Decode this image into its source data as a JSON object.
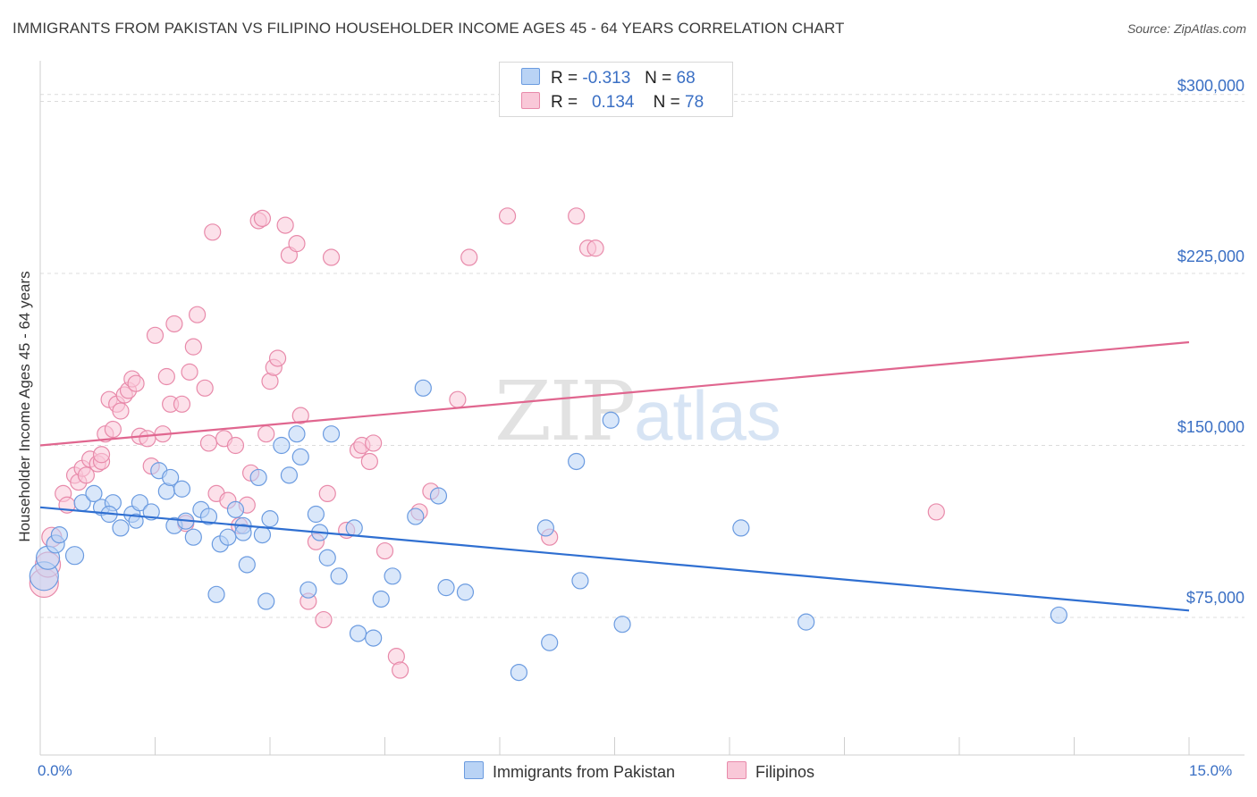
{
  "title": "IMMIGRANTS FROM PAKISTAN VS FILIPINO HOUSEHOLDER INCOME AGES 45 - 64 YEARS CORRELATION CHART",
  "source": "Source: ZipAtlas.com",
  "watermark": {
    "zip": "ZIP",
    "atlas": "atlas"
  },
  "legend": {
    "rows": [
      {
        "r_label": "R =",
        "r_value": "-0.313",
        "n_label": "N =",
        "n_value": "68"
      },
      {
        "r_label": "R =",
        "r_value": "0.134",
        "n_label": "N =",
        "n_value": "78"
      }
    ]
  },
  "colors": {
    "pakistan_fill": "#b9d3f5",
    "pakistan_stroke": "#6b9be0",
    "pakistan_line": "#2f6fd1",
    "filipino_fill": "#f9c8d8",
    "filipino_stroke": "#e88aaa",
    "filipino_line": "#e0668f",
    "axis_text": "#3a6fc4",
    "grid": "#dcdcdc"
  },
  "chart_data": {
    "type": "scatter",
    "title": "IMMIGRANTS FROM PAKISTAN VS FILIPINO HOUSEHOLDER INCOME AGES 45 - 64 YEARS CORRELATION CHART",
    "xlabel": "",
    "ylabel": "Householder Income Ages 45 - 64 years",
    "xlim": [
      0,
      15
    ],
    "ylim": [
      15000,
      315000
    ],
    "x_tick_labels": [
      "0.0%",
      "15.0%"
    ],
    "y_ticks": [
      75000,
      150000,
      225000,
      300000
    ],
    "y_tick_labels": [
      "$75,000",
      "$150,000",
      "$225,000",
      "$300,000"
    ],
    "grid": true,
    "legend_position": "top-center",
    "series": [
      {
        "name": "Immigrants from Pakistan",
        "r": -0.313,
        "n": 68,
        "trend": {
          "x": [
            0,
            15
          ],
          "y": [
            123000,
            78000
          ]
        },
        "points": [
          [
            0.05,
            93000,
            16
          ],
          [
            0.1,
            101000,
            13
          ],
          [
            0.2,
            107000,
            10
          ],
          [
            0.25,
            111000,
            9
          ],
          [
            0.45,
            102000,
            10
          ],
          [
            0.55,
            125000,
            9
          ],
          [
            0.7,
            129000,
            9
          ],
          [
            0.8,
            123000,
            9
          ],
          [
            0.95,
            125000,
            9
          ],
          [
            0.9,
            120000,
            9
          ],
          [
            1.05,
            114000,
            9
          ],
          [
            1.2,
            120000,
            9
          ],
          [
            1.25,
            117000,
            8
          ],
          [
            1.3,
            125000,
            9
          ],
          [
            1.45,
            121000,
            9
          ],
          [
            1.55,
            139000,
            9
          ],
          [
            1.65,
            130000,
            9
          ],
          [
            1.7,
            136000,
            9
          ],
          [
            1.75,
            115000,
            9
          ],
          [
            1.85,
            131000,
            9
          ],
          [
            1.9,
            117000,
            9
          ],
          [
            2.0,
            110000,
            9
          ],
          [
            2.1,
            122000,
            9
          ],
          [
            2.2,
            119000,
            9
          ],
          [
            2.3,
            85000,
            9
          ],
          [
            2.35,
            107000,
            9
          ],
          [
            2.45,
            110000,
            9
          ],
          [
            2.55,
            122000,
            9
          ],
          [
            2.65,
            115000,
            9
          ],
          [
            2.65,
            112000,
            9
          ],
          [
            2.7,
            98000,
            9
          ],
          [
            2.85,
            136000,
            9
          ],
          [
            2.9,
            111000,
            9
          ],
          [
            2.95,
            82000,
            9
          ],
          [
            3.0,
            118000,
            9
          ],
          [
            3.15,
            150000,
            9
          ],
          [
            3.25,
            137000,
            9
          ],
          [
            3.35,
            155000,
            9
          ],
          [
            3.4,
            145000,
            9
          ],
          [
            3.5,
            87000,
            9
          ],
          [
            3.6,
            120000,
            9
          ],
          [
            3.65,
            112000,
            9
          ],
          [
            3.75,
            101000,
            9
          ],
          [
            3.8,
            155000,
            9
          ],
          [
            3.9,
            93000,
            9
          ],
          [
            4.1,
            114000,
            9
          ],
          [
            4.15,
            68000,
            9
          ],
          [
            4.35,
            66000,
            9
          ],
          [
            4.45,
            83000,
            9
          ],
          [
            4.6,
            93000,
            9
          ],
          [
            4.9,
            119000,
            9
          ],
          [
            5.0,
            175000,
            9
          ],
          [
            5.2,
            128000,
            9
          ],
          [
            5.3,
            88000,
            9
          ],
          [
            5.55,
            86000,
            9
          ],
          [
            6.25,
            51000,
            9
          ],
          [
            6.6,
            114000,
            9
          ],
          [
            6.65,
            64000,
            9
          ],
          [
            7.0,
            143000,
            9
          ],
          [
            7.05,
            91000,
            9
          ],
          [
            7.45,
            161000,
            9
          ],
          [
            7.6,
            72000,
            9
          ],
          [
            9.15,
            114000,
            9
          ],
          [
            10.0,
            73000,
            9
          ],
          [
            13.3,
            76000,
            9
          ]
        ]
      },
      {
        "name": "Filipinos",
        "r": 0.134,
        "n": 78,
        "trend": {
          "x": [
            0,
            15
          ],
          "y": [
            150000,
            195000
          ]
        },
        "points": [
          [
            0.05,
            90000,
            16
          ],
          [
            0.1,
            98000,
            14
          ],
          [
            0.15,
            110000,
            11
          ],
          [
            0.3,
            129000,
            9
          ],
          [
            0.35,
            124000,
            9
          ],
          [
            0.45,
            137000,
            9
          ],
          [
            0.5,
            134000,
            9
          ],
          [
            0.55,
            140000,
            9
          ],
          [
            0.6,
            137000,
            9
          ],
          [
            0.65,
            144000,
            9
          ],
          [
            0.75,
            142000,
            9
          ],
          [
            0.8,
            143000,
            9
          ],
          [
            0.8,
            146000,
            9
          ],
          [
            0.85,
            155000,
            9
          ],
          [
            0.95,
            157000,
            9
          ],
          [
            0.9,
            170000,
            9
          ],
          [
            1.0,
            168000,
            9
          ],
          [
            1.05,
            165000,
            9
          ],
          [
            1.1,
            172000,
            9
          ],
          [
            1.15,
            174000,
            9
          ],
          [
            1.2,
            179000,
            9
          ],
          [
            1.25,
            177000,
            9
          ],
          [
            1.3,
            154000,
            9
          ],
          [
            1.4,
            153000,
            9
          ],
          [
            1.45,
            141000,
            9
          ],
          [
            1.5,
            198000,
            9
          ],
          [
            1.6,
            155000,
            9
          ],
          [
            1.65,
            180000,
            9
          ],
          [
            1.7,
            168000,
            9
          ],
          [
            1.75,
            203000,
            9
          ],
          [
            1.85,
            168000,
            9
          ],
          [
            1.9,
            116000,
            9
          ],
          [
            1.95,
            182000,
            9
          ],
          [
            2.0,
            193000,
            9
          ],
          [
            2.05,
            207000,
            9
          ],
          [
            2.15,
            175000,
            9
          ],
          [
            2.2,
            151000,
            9
          ],
          [
            2.25,
            243000,
            9
          ],
          [
            2.3,
            129000,
            9
          ],
          [
            2.4,
            153000,
            9
          ],
          [
            2.45,
            126000,
            9
          ],
          [
            2.55,
            150000,
            9
          ],
          [
            2.6,
            115000,
            9
          ],
          [
            2.7,
            124000,
            9
          ],
          [
            2.75,
            138000,
            9
          ],
          [
            2.85,
            248000,
            9
          ],
          [
            2.9,
            249000,
            9
          ],
          [
            2.95,
            155000,
            9
          ],
          [
            3.0,
            178000,
            9
          ],
          [
            3.05,
            184000,
            9
          ],
          [
            3.1,
            188000,
            9
          ],
          [
            3.2,
            246000,
            9
          ],
          [
            3.25,
            233000,
            9
          ],
          [
            3.35,
            238000,
            9
          ],
          [
            3.4,
            163000,
            9
          ],
          [
            3.5,
            82000,
            9
          ],
          [
            3.6,
            108000,
            9
          ],
          [
            3.7,
            74000,
            9
          ],
          [
            3.75,
            129000,
            9
          ],
          [
            3.8,
            232000,
            9
          ],
          [
            4.0,
            113000,
            9
          ],
          [
            4.15,
            148000,
            9
          ],
          [
            4.2,
            150000,
            9
          ],
          [
            4.3,
            143000,
            9
          ],
          [
            4.35,
            151000,
            9
          ],
          [
            4.5,
            104000,
            9
          ],
          [
            4.65,
            58000,
            9
          ],
          [
            4.7,
            52000,
            9
          ],
          [
            4.95,
            121000,
            9
          ],
          [
            5.1,
            130000,
            9
          ],
          [
            5.45,
            170000,
            9
          ],
          [
            5.6,
            232000,
            9
          ],
          [
            6.1,
            250000,
            9
          ],
          [
            6.65,
            110000,
            9
          ],
          [
            7.0,
            250000,
            9
          ],
          [
            7.15,
            236000,
            9
          ],
          [
            7.25,
            236000,
            9
          ],
          [
            11.7,
            121000,
            9
          ]
        ]
      }
    ]
  },
  "axis": {
    "ylabel": "Householder Income Ages 45 - 64 years",
    "x_min_label": "0.0%",
    "x_max_label": "15.0%",
    "y_tick_labels": [
      "$300,000",
      "$225,000",
      "$150,000",
      "$75,000"
    ]
  },
  "bottom_legend": {
    "pakistan": "Immigrants from Pakistan",
    "filipinos": "Filipinos"
  }
}
